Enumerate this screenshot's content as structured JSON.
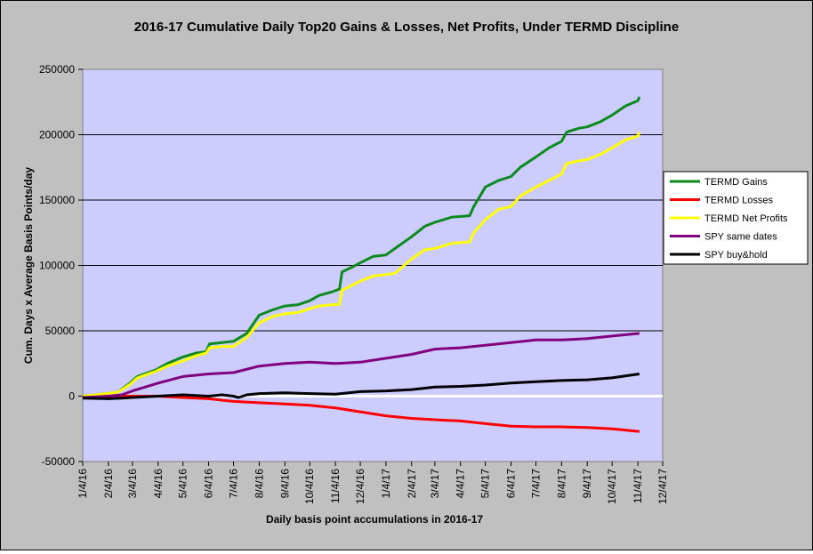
{
  "chart_data": {
    "type": "line",
    "title": "2016-17 Cumulative Daily Top20 Gains & Losses, Net Profits, Under TERMD Discipline",
    "xlabel": "Daily basis point accumulations in 2016-17",
    "ylabel": "Cum. Days x Average Basis Points/day",
    "ylim": [
      -50000,
      250000
    ],
    "yticks": [
      -50000,
      0,
      50000,
      100000,
      150000,
      200000,
      250000
    ],
    "ytick_labels": [
      "-50000",
      "0",
      "50000",
      "100000",
      "150000",
      "200000",
      "250000"
    ],
    "xlim": [
      "2016-01-04",
      "2017-12-04"
    ],
    "xtick_labels": [
      "1/4/16",
      "2/4/16",
      "3/4/16",
      "4/4/16",
      "5/4/16",
      "6/4/16",
      "7/4/16",
      "8/4/16",
      "9/4/16",
      "10/4/16",
      "11/4/16",
      "12/4/16",
      "1/4/17",
      "2/4/17",
      "3/4/17",
      "4/4/17",
      "5/4/17",
      "6/4/17",
      "7/4/17",
      "8/4/17",
      "9/4/17",
      "10/4/17",
      "11/4/17",
      "12/4/17"
    ],
    "grid": "horizontal",
    "legend_position": "right",
    "series": [
      {
        "name": "TERMD Gains",
        "color": "#0b8a1e",
        "points": [
          [
            "2016-01-04",
            0
          ],
          [
            "2016-02-01",
            2000
          ],
          [
            "2016-02-15",
            3000
          ],
          [
            "2016-03-01",
            10000
          ],
          [
            "2016-03-10",
            15000
          ],
          [
            "2016-04-01",
            20000
          ],
          [
            "2016-04-15",
            25000
          ],
          [
            "2016-05-04",
            30000
          ],
          [
            "2016-05-20",
            33000
          ],
          [
            "2016-06-01",
            34000
          ],
          [
            "2016-06-05",
            40000
          ],
          [
            "2016-06-20",
            41000
          ],
          [
            "2016-07-04",
            42000
          ],
          [
            "2016-07-20",
            48000
          ],
          [
            "2016-08-04",
            62000
          ],
          [
            "2016-08-20",
            66000
          ],
          [
            "2016-09-04",
            69000
          ],
          [
            "2016-09-20",
            70000
          ],
          [
            "2016-10-04",
            73000
          ],
          [
            "2016-10-15",
            77000
          ],
          [
            "2016-11-01",
            80000
          ],
          [
            "2016-11-09",
            82000
          ],
          [
            "2016-11-12",
            95000
          ],
          [
            "2016-11-25",
            99000
          ],
          [
            "2016-12-04",
            102000
          ],
          [
            "2016-12-20",
            107000
          ],
          [
            "2017-01-04",
            108000
          ],
          [
            "2017-01-15",
            113000
          ],
          [
            "2017-02-04",
            122000
          ],
          [
            "2017-02-20",
            130000
          ],
          [
            "2017-03-04",
            133000
          ],
          [
            "2017-03-25",
            137000
          ],
          [
            "2017-04-15",
            138000
          ],
          [
            "2017-04-20",
            145000
          ],
          [
            "2017-05-04",
            160000
          ],
          [
            "2017-05-20",
            165000
          ],
          [
            "2017-06-04",
            168000
          ],
          [
            "2017-06-15",
            175000
          ],
          [
            "2017-07-04",
            183000
          ],
          [
            "2017-07-20",
            190000
          ],
          [
            "2017-08-04",
            195000
          ],
          [
            "2017-08-10",
            202000
          ],
          [
            "2017-08-25",
            205000
          ],
          [
            "2017-09-04",
            206000
          ],
          [
            "2017-09-20",
            210000
          ],
          [
            "2017-10-04",
            215000
          ],
          [
            "2017-10-20",
            222000
          ],
          [
            "2017-11-04",
            226000
          ],
          [
            "2017-11-06",
            229000
          ]
        ]
      },
      {
        "name": "TERMD Losses",
        "color": "#ff0000",
        "points": [
          [
            "2016-01-04",
            0
          ],
          [
            "2016-04-04",
            0
          ],
          [
            "2016-05-04",
            -1000
          ],
          [
            "2016-06-04",
            -2000
          ],
          [
            "2016-07-04",
            -4000
          ],
          [
            "2016-08-04",
            -5000
          ],
          [
            "2016-09-04",
            -6000
          ],
          [
            "2016-10-04",
            -7000
          ],
          [
            "2016-11-04",
            -9000
          ],
          [
            "2016-12-04",
            -12000
          ],
          [
            "2017-01-04",
            -15000
          ],
          [
            "2017-02-04",
            -17000
          ],
          [
            "2017-03-04",
            -18000
          ],
          [
            "2017-04-04",
            -19000
          ],
          [
            "2017-05-04",
            -21000
          ],
          [
            "2017-06-04",
            -23000
          ],
          [
            "2017-07-04",
            -23500
          ],
          [
            "2017-08-04",
            -23500
          ],
          [
            "2017-09-04",
            -24000
          ],
          [
            "2017-10-04",
            -25000
          ],
          [
            "2017-11-06",
            -27000
          ]
        ]
      },
      {
        "name": "TERMD Net Profits",
        "color": "#ffff00",
        "points": [
          [
            "2016-01-04",
            0
          ],
          [
            "2016-02-01",
            2000
          ],
          [
            "2016-02-15",
            3000
          ],
          [
            "2016-03-01",
            9000
          ],
          [
            "2016-03-10",
            14000
          ],
          [
            "2016-04-01",
            19000
          ],
          [
            "2016-04-15",
            23000
          ],
          [
            "2016-05-04",
            27000
          ],
          [
            "2016-05-20",
            31000
          ],
          [
            "2016-06-01",
            33000
          ],
          [
            "2016-06-05",
            37000
          ],
          [
            "2016-06-20",
            38000
          ],
          [
            "2016-07-04",
            38000
          ],
          [
            "2016-07-20",
            45000
          ],
          [
            "2016-08-04",
            56000
          ],
          [
            "2016-08-20",
            61000
          ],
          [
            "2016-09-04",
            63000
          ],
          [
            "2016-09-20",
            64000
          ],
          [
            "2016-10-04",
            67000
          ],
          [
            "2016-10-15",
            69000
          ],
          [
            "2016-11-01",
            70000
          ],
          [
            "2016-11-09",
            70000
          ],
          [
            "2016-11-12",
            81000
          ],
          [
            "2016-11-25",
            85000
          ],
          [
            "2016-12-04",
            88000
          ],
          [
            "2016-12-20",
            92000
          ],
          [
            "2017-01-04",
            93000
          ],
          [
            "2017-01-15",
            94000
          ],
          [
            "2017-02-04",
            105000
          ],
          [
            "2017-02-20",
            112000
          ],
          [
            "2017-03-04",
            113000
          ],
          [
            "2017-03-25",
            117000
          ],
          [
            "2017-04-15",
            118000
          ],
          [
            "2017-04-20",
            125000
          ],
          [
            "2017-05-04",
            135000
          ],
          [
            "2017-05-20",
            143000
          ],
          [
            "2017-06-04",
            145000
          ],
          [
            "2017-06-15",
            153000
          ],
          [
            "2017-07-04",
            160000
          ],
          [
            "2017-07-20",
            165000
          ],
          [
            "2017-08-04",
            170000
          ],
          [
            "2017-08-10",
            178000
          ],
          [
            "2017-08-25",
            180000
          ],
          [
            "2017-09-04",
            181000
          ],
          [
            "2017-09-20",
            185000
          ],
          [
            "2017-10-04",
            190000
          ],
          [
            "2017-10-20",
            196000
          ],
          [
            "2017-11-04",
            199000
          ],
          [
            "2017-11-06",
            202000
          ]
        ]
      },
      {
        "name": "SPY same dates",
        "color": "#800080",
        "points": [
          [
            "2016-01-04",
            -1000
          ],
          [
            "2016-02-04",
            0
          ],
          [
            "2016-02-20",
            1000
          ],
          [
            "2016-03-04",
            4000
          ],
          [
            "2016-04-04",
            10000
          ],
          [
            "2016-05-04",
            15000
          ],
          [
            "2016-06-04",
            17000
          ],
          [
            "2016-07-04",
            18000
          ],
          [
            "2016-08-04",
            23000
          ],
          [
            "2016-09-04",
            25000
          ],
          [
            "2016-10-04",
            26000
          ],
          [
            "2016-11-04",
            25000
          ],
          [
            "2016-12-04",
            26000
          ],
          [
            "2017-01-04",
            29000
          ],
          [
            "2017-02-04",
            32000
          ],
          [
            "2017-03-04",
            36000
          ],
          [
            "2017-04-04",
            37000
          ],
          [
            "2017-05-04",
            39000
          ],
          [
            "2017-06-04",
            41000
          ],
          [
            "2017-07-04",
            43000
          ],
          [
            "2017-08-04",
            43000
          ],
          [
            "2017-09-04",
            44000
          ],
          [
            "2017-10-04",
            46000
          ],
          [
            "2017-11-06",
            48000
          ]
        ]
      },
      {
        "name": "SPY buy&hold",
        "color": "#000000",
        "points": [
          [
            "2016-01-04",
            -1500
          ],
          [
            "2016-02-04",
            -2000
          ],
          [
            "2016-02-20",
            -1500
          ],
          [
            "2016-03-04",
            -1000
          ],
          [
            "2016-04-04",
            0
          ],
          [
            "2016-05-04",
            1000
          ],
          [
            "2016-06-04",
            0
          ],
          [
            "2016-06-20",
            1000
          ],
          [
            "2016-07-04",
            0
          ],
          [
            "2016-07-10",
            -1000
          ],
          [
            "2016-07-20",
            1000
          ],
          [
            "2016-08-04",
            2000
          ],
          [
            "2016-09-04",
            2500
          ],
          [
            "2016-10-04",
            2000
          ],
          [
            "2016-11-04",
            1500
          ],
          [
            "2016-12-04",
            3500
          ],
          [
            "2017-01-04",
            4000
          ],
          [
            "2017-02-04",
            5000
          ],
          [
            "2017-03-04",
            7000
          ],
          [
            "2017-04-04",
            7500
          ],
          [
            "2017-05-04",
            8500
          ],
          [
            "2017-06-04",
            10000
          ],
          [
            "2017-07-04",
            11000
          ],
          [
            "2017-08-04",
            12000
          ],
          [
            "2017-09-04",
            12500
          ],
          [
            "2017-10-04",
            14000
          ],
          [
            "2017-11-06",
            17000
          ]
        ]
      }
    ]
  }
}
